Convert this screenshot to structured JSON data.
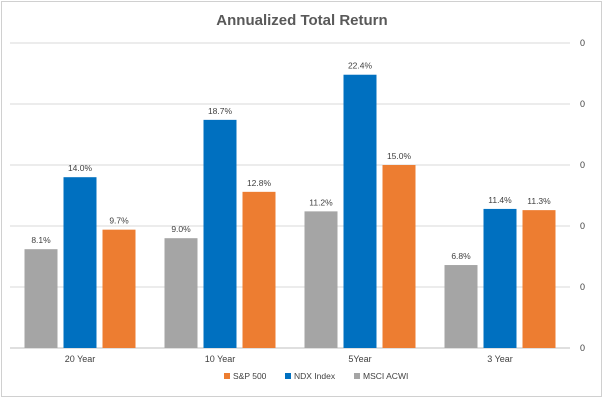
{
  "chart_data": {
    "type": "bar",
    "title": "Annualized Total Return",
    "categories": [
      "20 Year",
      "10 Year",
      "5Year",
      "3 Year"
    ],
    "series": [
      {
        "name": "MSCI ACWI",
        "color": "#a5a5a5",
        "values": [
          8.1,
          9.0,
          11.2,
          6.8
        ],
        "labels": [
          "8.1%",
          "9.0%",
          "11.2%",
          "6.8%"
        ]
      },
      {
        "name": "NDX Index",
        "color": "#0070c0",
        "values": [
          14.0,
          18.7,
          22.4,
          11.4
        ],
        "labels": [
          "14.0%",
          "18.7%",
          "22.4%",
          "11.4%"
        ]
      },
      {
        "name": "S&P 500",
        "color": "#ed7d31",
        "values": [
          9.7,
          12.8,
          15.0,
          11.3
        ],
        "labels": [
          "9.7%",
          "12.8%",
          "15.0%",
          "11.3%"
        ]
      }
    ],
    "legend_order": [
      "S&P 500",
      "NDX Index",
      "MSCI ACWI"
    ],
    "legend_position": "bottom-right",
    "y_axis_side": "right",
    "y_tick_labels": [
      "0",
      "0",
      "0",
      "0",
      "0",
      "0"
    ],
    "ylim": [
      0,
      25
    ],
    "grid": true
  }
}
